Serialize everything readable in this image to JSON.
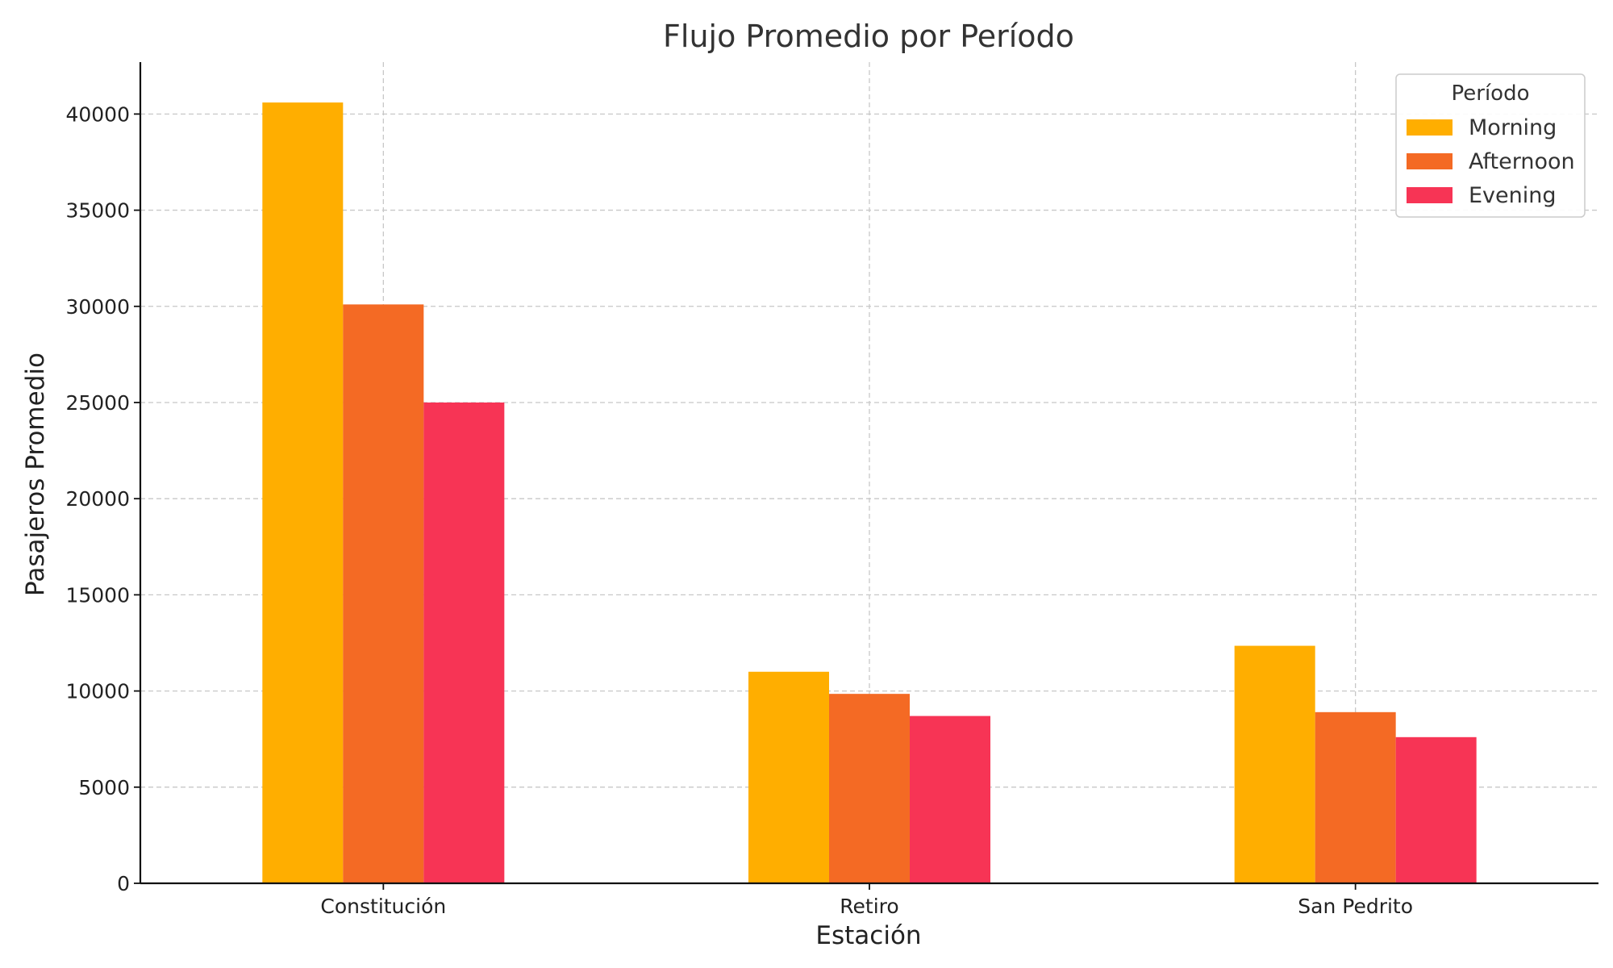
{
  "chart_data": {
    "type": "bar",
    "title": "Flujo Promedio por Período",
    "xlabel": "Estación",
    "ylabel": "Pasajeros Promedio",
    "categories": [
      "Constitución",
      "Retiro",
      "San Pedrito"
    ],
    "series": [
      {
        "name": "Morning",
        "color": "#FFAE00",
        "values": [
          40600,
          11000,
          12350
        ]
      },
      {
        "name": "Afternoon",
        "color": "#F46A24",
        "values": [
          30100,
          9850,
          8900
        ]
      },
      {
        "name": "Evening",
        "color": "#F73455",
        "values": [
          25000,
          8700,
          7600
        ]
      }
    ],
    "ylim": [
      0,
      42700
    ],
    "yticks": [
      0,
      5000,
      10000,
      15000,
      20000,
      25000,
      30000,
      35000,
      40000
    ],
    "grid": true,
    "legend": {
      "title": "Período",
      "placement": "top-right"
    }
  }
}
